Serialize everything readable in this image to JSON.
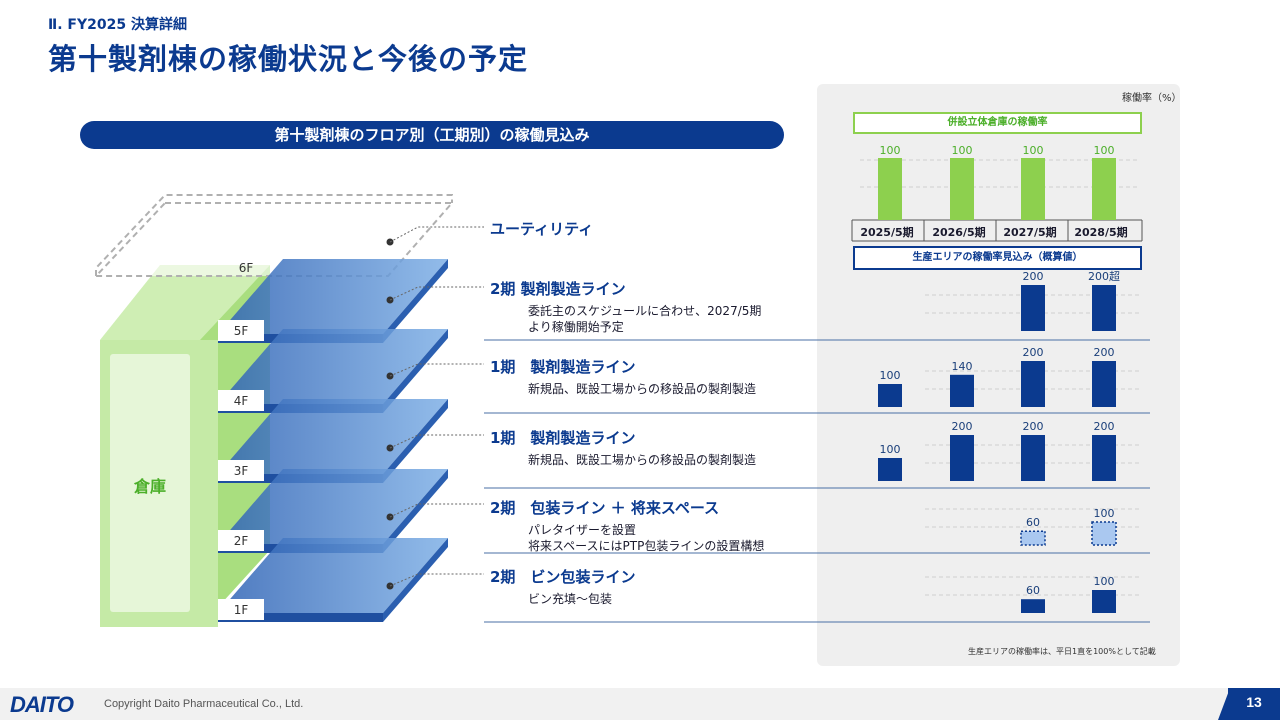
{
  "section_label": "Ⅱ. FY2025 決算詳細",
  "page_title": "第十製剤棟の稼働状況と今後の予定",
  "left_banner": "第十製剤棟のフロア別（工期別）の稼働見込み",
  "building": {
    "warehouse_label": "倉庫",
    "floor_labels": [
      "1F",
      "2F",
      "3F",
      "4F",
      "5F",
      "6F"
    ],
    "utility_label": "ユーティリティ"
  },
  "floors": [
    {
      "title": "2期 製剤製造ライン",
      "desc": [
        "委託主のスケジュールに合わせ、2027/5期",
        "より稼働開始予定"
      ]
    },
    {
      "title": "1期　製剤製造ライン",
      "desc": [
        "新規品、既設工場からの移設品の製剤製造"
      ]
    },
    {
      "title": "1期　製剤製造ライン",
      "desc": [
        "新規品、既設工場からの移設品の製剤製造"
      ]
    },
    {
      "title": "2期　包装ライン ＋ 将来スペース",
      "desc": [
        "パレタイザーを設置",
        "将来スペースにはPTP包装ラインの設置構想"
      ]
    },
    {
      "title": "2期　ビン包装ライン",
      "desc": [
        "ビン充填～包装"
      ]
    }
  ],
  "right_panel": {
    "unit_label": "稼働率（%）",
    "warehouse_header": "併設立体倉庫の稼働率",
    "production_header": "生産エリアの稼働率見込み（概算値）",
    "footnote": "生産エリアの稼働率は、平日1直を100%として記載"
  },
  "chart_data": {
    "type": "bar",
    "categories": [
      "2025/5期",
      "2026/5期",
      "2027/5期",
      "2028/5期"
    ],
    "colors": {
      "warehouse": "#8dd04e",
      "production": "#0b3a8f",
      "future": "#aac8f0"
    },
    "warehouse": {
      "values": [
        100,
        100,
        100,
        100
      ],
      "labels": [
        "100",
        "100",
        "100",
        "100"
      ]
    },
    "production_rows": [
      {
        "values": [
          null,
          null,
          200,
          200
        ],
        "labels": [
          "",
          "",
          "200",
          "200超"
        ],
        "style": "solid"
      },
      {
        "values": [
          100,
          140,
          200,
          200
        ],
        "labels": [
          "100",
          "140",
          "200",
          "200"
        ],
        "style": "solid"
      },
      {
        "values": [
          100,
          200,
          200,
          200
        ],
        "labels": [
          "100",
          "200",
          "200",
          "200"
        ],
        "style": "solid"
      },
      {
        "values": [
          null,
          null,
          60,
          100
        ],
        "labels": [
          "",
          "",
          "60",
          "100"
        ],
        "style": "future"
      },
      {
        "values": [
          null,
          null,
          60,
          100
        ],
        "labels": [
          "",
          "",
          "60",
          "100"
        ],
        "style": "solid"
      }
    ]
  },
  "footer": {
    "logo": "DAITO",
    "copyright": "Copyright  Daito Pharmaceutical Co., Ltd.",
    "page_number": "13"
  }
}
